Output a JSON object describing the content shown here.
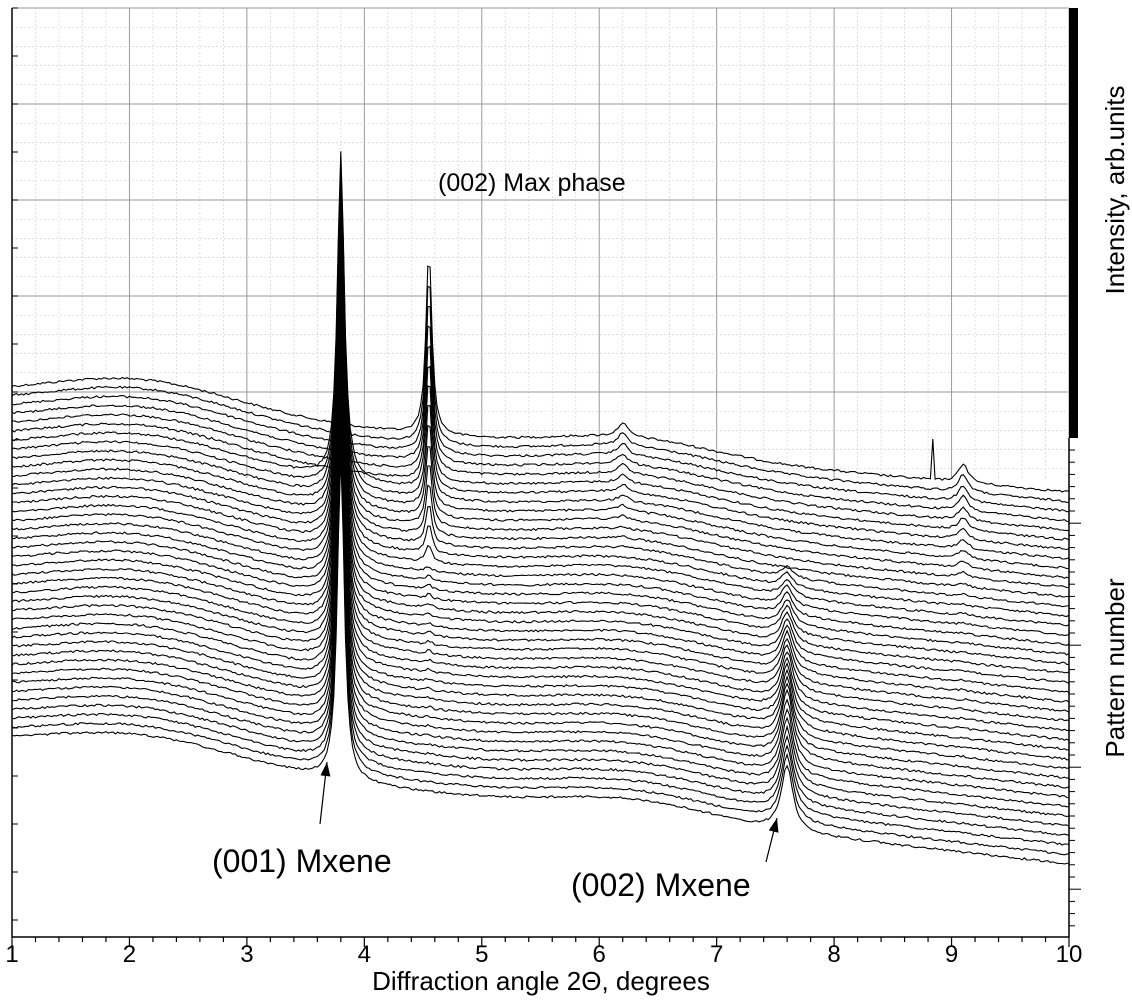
{
  "chart_data": {
    "type": "line",
    "xlabel": "Diffraction angle 2Θ, degrees",
    "ylabel_top": "Intensity,  arb.units",
    "ylabel_bottom": "Pattern number",
    "xlim": [
      1,
      10
    ],
    "xticks": [
      1,
      2,
      3,
      4,
      5,
      6,
      7,
      8,
      9,
      10
    ],
    "grid": true,
    "y_tick_labels_shown": false,
    "pattern_count": 40,
    "annotations": [
      {
        "text": "(002) Max phase",
        "x": 4.55
      },
      {
        "text": "(001) Mxene",
        "x": 3.8
      },
      {
        "text": "(002) Mxene",
        "x": 7.6
      }
    ],
    "peaks": [
      {
        "label": "(001) Mxene",
        "position": 3.8
      },
      {
        "label": "(002) Max phase",
        "position": 4.55
      },
      {
        "label": "(002) Mxene",
        "position": 7.6
      },
      {
        "label": "",
        "position": 6.2
      },
      {
        "label": "",
        "position": 9.1
      }
    ],
    "series_style": {
      "color": "#000000"
    }
  }
}
